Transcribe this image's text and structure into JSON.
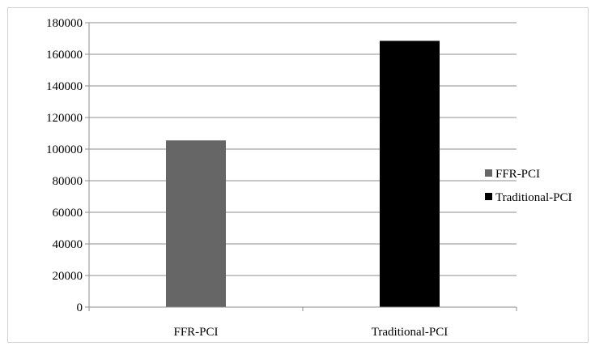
{
  "chart_data": {
    "type": "bar",
    "categories": [
      "FFR-PCI",
      "Traditional-PCI"
    ],
    "series": [
      {
        "name": "FFR-PCI",
        "values": [
          105500,
          null
        ],
        "color": "#666666"
      },
      {
        "name": "Traditional-PCI",
        "values": [
          null,
          168500
        ],
        "color": "#000000"
      }
    ],
    "ylim": [
      0,
      180000
    ],
    "yticks": [
      0,
      20000,
      40000,
      60000,
      80000,
      100000,
      120000,
      140000,
      160000,
      180000
    ],
    "grid": true,
    "legend_position": "right",
    "title": "",
    "xlabel": "",
    "ylabel": ""
  }
}
